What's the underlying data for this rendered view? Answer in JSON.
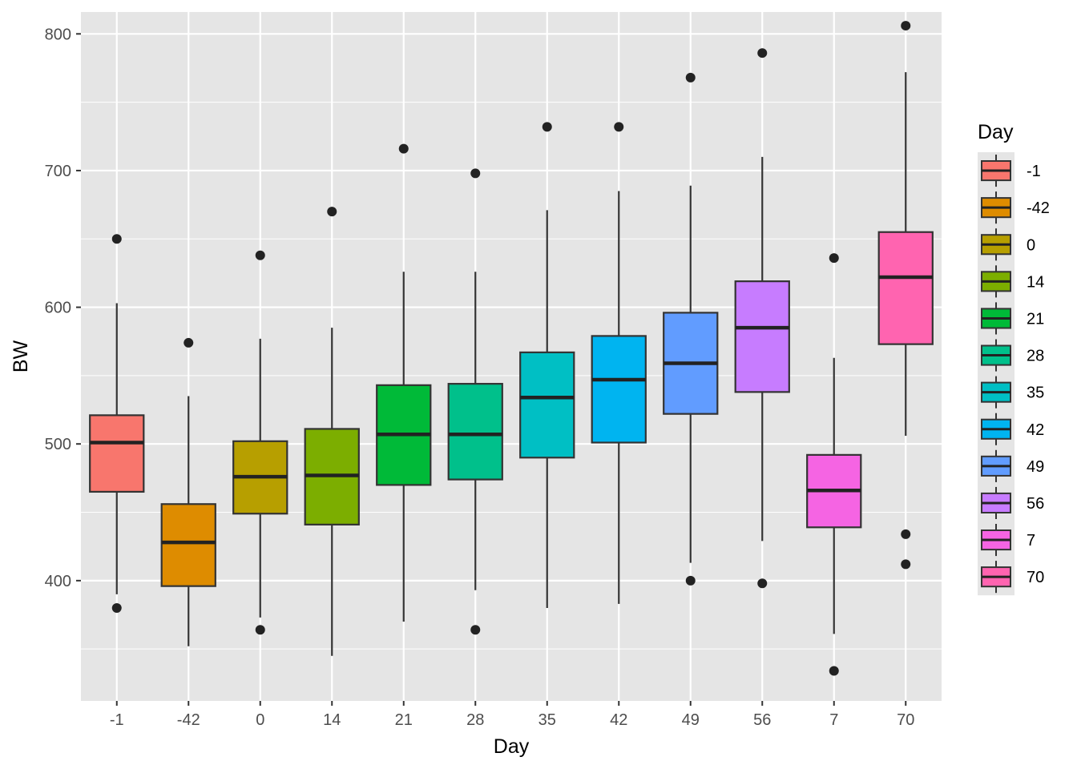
{
  "chart_data": {
    "type": "boxplot",
    "xlabel": "Day",
    "ylabel": "BW",
    "ylim": [
      312,
      816
    ],
    "y_ticks": [
      400,
      500,
      600,
      700,
      800
    ],
    "y_tick_labels": [
      "400",
      "500",
      "600",
      "700",
      "800"
    ],
    "y_minor_ticks": [
      350,
      450,
      550,
      650,
      750
    ],
    "grid": true,
    "panel_background": "#E5E5E5",
    "grid_color": "#FFFFFF",
    "legend": {
      "title": "Day",
      "position": "right"
    },
    "categories": [
      "-1",
      "-42",
      "0",
      "14",
      "21",
      "28",
      "35",
      "42",
      "49",
      "56",
      "7",
      "70"
    ],
    "colors": [
      "#F8766D",
      "#DE8C00",
      "#B79F00",
      "#7CAE00",
      "#00BA38",
      "#00C08B",
      "#00BFC4",
      "#00B4F0",
      "#619CFF",
      "#C77CFF",
      "#F564E3",
      "#FF64B0"
    ],
    "boxes": [
      {
        "label": "-1",
        "q1": 465,
        "median": 501,
        "q3": 521,
        "whisker_low": 390,
        "whisker_high": 603,
        "outliers": [
          650,
          380
        ]
      },
      {
        "label": "-42",
        "q1": 396,
        "median": 428,
        "q3": 456,
        "whisker_low": 352,
        "whisker_high": 535,
        "outliers": [
          574
        ]
      },
      {
        "label": "0",
        "q1": 449,
        "median": 476,
        "q3": 502,
        "whisker_low": 373,
        "whisker_high": 577,
        "outliers": [
          638,
          364
        ]
      },
      {
        "label": "14",
        "q1": 441,
        "median": 477,
        "q3": 511,
        "whisker_low": 345,
        "whisker_high": 585,
        "outliers": [
          670
        ]
      },
      {
        "label": "21",
        "q1": 470,
        "median": 507,
        "q3": 543,
        "whisker_low": 370,
        "whisker_high": 626,
        "outliers": [
          716
        ]
      },
      {
        "label": "28",
        "q1": 474,
        "median": 507,
        "q3": 544,
        "whisker_low": 393,
        "whisker_high": 626,
        "outliers": [
          698,
          364
        ]
      },
      {
        "label": "35",
        "q1": 490,
        "median": 534,
        "q3": 567,
        "whisker_low": 380,
        "whisker_high": 671,
        "outliers": [
          732
        ]
      },
      {
        "label": "42",
        "q1": 501,
        "median": 547,
        "q3": 579,
        "whisker_low": 383,
        "whisker_high": 685,
        "outliers": [
          732
        ]
      },
      {
        "label": "49",
        "q1": 522,
        "median": 559,
        "q3": 596,
        "whisker_low": 413,
        "whisker_high": 689,
        "outliers": [
          768,
          400
        ]
      },
      {
        "label": "56",
        "q1": 538,
        "median": 585,
        "q3": 619,
        "whisker_low": 429,
        "whisker_high": 710,
        "outliers": [
          786,
          398
        ]
      },
      {
        "label": "7",
        "q1": 439,
        "median": 466,
        "q3": 492,
        "whisker_low": 361,
        "whisker_high": 563,
        "outliers": [
          636,
          334
        ]
      },
      {
        "label": "70",
        "q1": 573,
        "median": 622,
        "q3": 655,
        "whisker_low": 506,
        "whisker_high": 772,
        "outliers": [
          806,
          434,
          412
        ]
      }
    ]
  }
}
